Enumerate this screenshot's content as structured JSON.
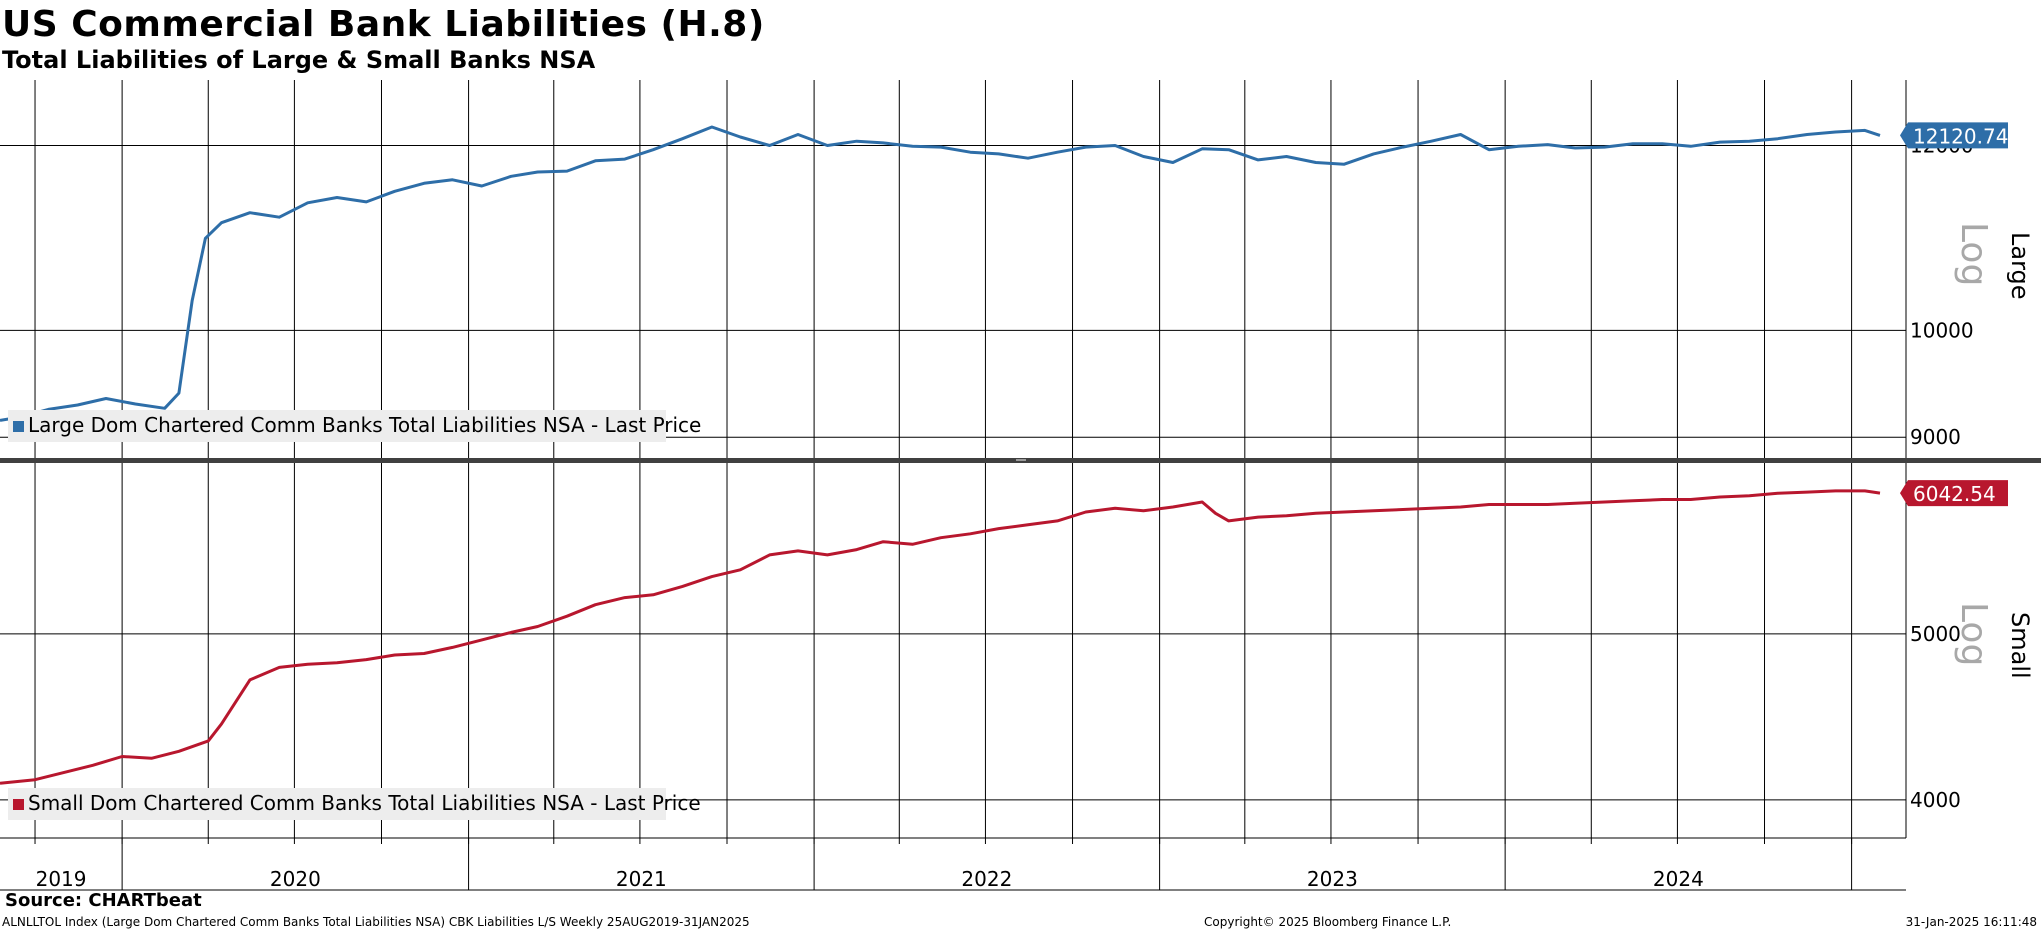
{
  "header": {
    "title": "US Commercial Bank Liabilities (H.8)",
    "subtitle": "Total Liabilities of Large & Small Banks NSA"
  },
  "footer": {
    "source": "Source: CHARTbeat",
    "ticker_line": "ALNLLTOL Index (Large Dom Chartered Comm Banks Total Liabilities NSA) CBK Liabilities L/S  Weekly 25AUG2019-31JAN2025",
    "copyright": "Copyright© 2025 Bloomberg Finance L.P.",
    "timestamp": "31-Jan-2025 16:11:48"
  },
  "colors": {
    "large": "#2e6ea8",
    "small": "#b8172e",
    "grid": "#000000",
    "legend_bg": "#ededed",
    "log_text": "#a8a8a8",
    "divider": "#404040"
  },
  "chart_data": [
    {
      "type": "line",
      "panel": "Large",
      "scale": "log",
      "scale_label": "Log",
      "ylim": [
        8800,
        12800
      ],
      "yticks": [
        9000,
        10000,
        12000
      ],
      "last_value_label": "12120.74",
      "x_period": [
        "2019-08-25",
        "2025-01-31"
      ],
      "x_tick_labels": [
        "2019",
        "2020",
        "2021",
        "2022",
        "2023",
        "2024"
      ],
      "grid": true,
      "legend_placement": "bottom-left",
      "series": [
        {
          "name": "Large Dom Chartered Comm Banks Total Liabilities NSA - Last Price",
          "x": [
            "2019-08-25",
            "2019-09-15",
            "2019-10-15",
            "2019-11-15",
            "2019-12-15",
            "2020-01-15",
            "2020-02-15",
            "2020-03-01",
            "2020-03-15",
            "2020-03-29",
            "2020-04-15",
            "2020-05-15",
            "2020-06-15",
            "2020-07-15",
            "2020-08-15",
            "2020-09-15",
            "2020-10-15",
            "2020-11-15",
            "2020-12-15",
            "2021-01-15",
            "2021-02-15",
            "2021-03-15",
            "2021-04-15",
            "2021-05-15",
            "2021-06-15",
            "2021-07-15",
            "2021-08-15",
            "2021-09-15",
            "2021-10-15",
            "2021-11-15",
            "2021-12-15",
            "2022-01-15",
            "2022-02-15",
            "2022-03-15",
            "2022-04-15",
            "2022-05-15",
            "2022-06-15",
            "2022-07-15",
            "2022-08-15",
            "2022-09-15",
            "2022-10-15",
            "2022-11-15",
            "2022-12-15",
            "2023-01-15",
            "2023-02-15",
            "2023-03-15",
            "2023-04-15",
            "2023-05-15",
            "2023-06-15",
            "2023-07-15",
            "2023-08-15",
            "2023-09-15",
            "2023-10-15",
            "2023-11-15",
            "2023-12-15",
            "2024-01-15",
            "2024-02-15",
            "2024-03-15",
            "2024-04-15",
            "2024-05-15",
            "2024-06-15",
            "2024-07-15",
            "2024-08-15",
            "2024-09-15",
            "2024-10-15",
            "2024-11-15",
            "2024-12-15",
            "2025-01-15",
            "2025-01-31"
          ],
          "values": [
            9150,
            9180,
            9250,
            9290,
            9350,
            9300,
            9260,
            9400,
            10300,
            10950,
            11120,
            11230,
            11180,
            11340,
            11400,
            11350,
            11470,
            11560,
            11600,
            11530,
            11640,
            11690,
            11700,
            11820,
            11840,
            11950,
            12080,
            12220,
            12100,
            12000,
            12130,
            12000,
            12050,
            12030,
            11990,
            11980,
            11920,
            11900,
            11850,
            11920,
            11980,
            12000,
            11870,
            11800,
            11960,
            11950,
            11830,
            11870,
            11800,
            11780,
            11900,
            11980,
            12050,
            12130,
            11950,
            11990,
            12010,
            11970,
            11980,
            12020,
            12020,
            11990,
            12040,
            12050,
            12080,
            12130,
            12160,
            12180,
            12120
          ]
        }
      ]
    },
    {
      "type": "line",
      "panel": "Small",
      "scale": "log",
      "scale_label": "Log",
      "ylim": [
        3800,
        6300
      ],
      "yticks": [
        4000,
        5000
      ],
      "last_value_label": "6042.54",
      "x_period": [
        "2019-08-25",
        "2025-01-31"
      ],
      "x_tick_labels": [
        "2019",
        "2020",
        "2021",
        "2022",
        "2023",
        "2024"
      ],
      "grid": true,
      "legend_placement": "bottom-left",
      "series": [
        {
          "name": "Small Dom Chartered Comm Banks Total Liabilities NSA - Last Price",
          "x": [
            "2019-08-25",
            "2019-10-01",
            "2019-12-01",
            "2020-01-01",
            "2020-02-01",
            "2020-03-01",
            "2020-04-01",
            "2020-04-15",
            "2020-05-15",
            "2020-06-15",
            "2020-07-15",
            "2020-08-15",
            "2020-09-15",
            "2020-10-15",
            "2020-11-15",
            "2020-12-15",
            "2021-01-15",
            "2021-02-15",
            "2021-03-15",
            "2021-04-15",
            "2021-05-15",
            "2021-06-15",
            "2021-07-15",
            "2021-08-15",
            "2021-09-15",
            "2021-10-15",
            "2021-11-15",
            "2021-12-15",
            "2022-01-15",
            "2022-02-15",
            "2022-03-15",
            "2022-04-15",
            "2022-05-15",
            "2022-06-15",
            "2022-07-15",
            "2022-08-15",
            "2022-09-15",
            "2022-10-15",
            "2022-11-15",
            "2022-12-15",
            "2023-01-15",
            "2023-02-15",
            "2023-03-01",
            "2023-03-15",
            "2023-04-15",
            "2023-05-15",
            "2023-06-15",
            "2023-07-15",
            "2023-08-15",
            "2023-09-15",
            "2023-10-15",
            "2023-11-15",
            "2023-12-15",
            "2024-01-15",
            "2024-02-15",
            "2024-03-15",
            "2024-04-15",
            "2024-05-15",
            "2024-06-15",
            "2024-07-15",
            "2024-08-15",
            "2024-09-15",
            "2024-10-15",
            "2024-11-15",
            "2024-12-15",
            "2025-01-15",
            "2025-01-31"
          ],
          "values": [
            4090,
            4110,
            4190,
            4240,
            4230,
            4270,
            4330,
            4430,
            4700,
            4780,
            4800,
            4810,
            4830,
            4860,
            4870,
            4910,
            4960,
            5010,
            5050,
            5120,
            5200,
            5250,
            5270,
            5330,
            5400,
            5450,
            5560,
            5590,
            5560,
            5600,
            5660,
            5640,
            5690,
            5720,
            5760,
            5790,
            5820,
            5890,
            5920,
            5900,
            5930,
            5970,
            5880,
            5820,
            5850,
            5860,
            5880,
            5890,
            5900,
            5910,
            5920,
            5930,
            5950,
            5950,
            5950,
            5960,
            5970,
            5980,
            5990,
            5990,
            6010,
            6020,
            6040,
            6050,
            6060,
            6060,
            6042
          ]
        }
      ]
    }
  ]
}
